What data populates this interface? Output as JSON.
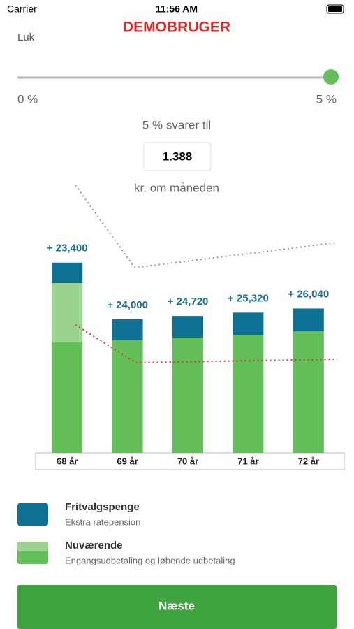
{
  "status_bar": {
    "carrier": "Carrier",
    "time": "11:56 AM"
  },
  "header": {
    "title": "DEMOBRUGER",
    "close": "Luk"
  },
  "slider": {
    "min_label": "0 %",
    "max_label": "5 %"
  },
  "summary": {
    "caption": "5 % svarer til",
    "amount": "1.388",
    "unit": "kr. om måneden"
  },
  "chart_data": {
    "type": "stacked-bar",
    "categories": [
      "68 år",
      "69 år",
      "70 år",
      "71 år",
      "72 år"
    ],
    "ylim": [
      0,
      220000
    ],
    "series": [
      {
        "name": "Nuværende",
        "color": "#64be5a",
        "values": [
          126400,
          128800,
          132000,
          135200,
          139200
        ]
      },
      {
        "color": "#9ad38e",
        "values": [
          68000,
          null,
          null,
          null,
          null
        ]
      },
      {
        "name": "Fritvalgspenge",
        "color": "#0e7193",
        "values": [
          23400,
          24000,
          24720,
          25320,
          26040
        ],
        "value_labels": [
          "+ 23,400",
          "+ 24,000",
          "+ 24,720",
          "+ 25,320",
          "+ 26,040"
        ]
      }
    ]
  },
  "legend": [
    {
      "title": "Fritvalgspenge",
      "subtitle": "Ekstra ratepension"
    },
    {
      "title": "Nuværende",
      "subtitle": "Engangsudbetaling og løbende udbetaling"
    }
  ],
  "button": {
    "label": "Næste"
  }
}
